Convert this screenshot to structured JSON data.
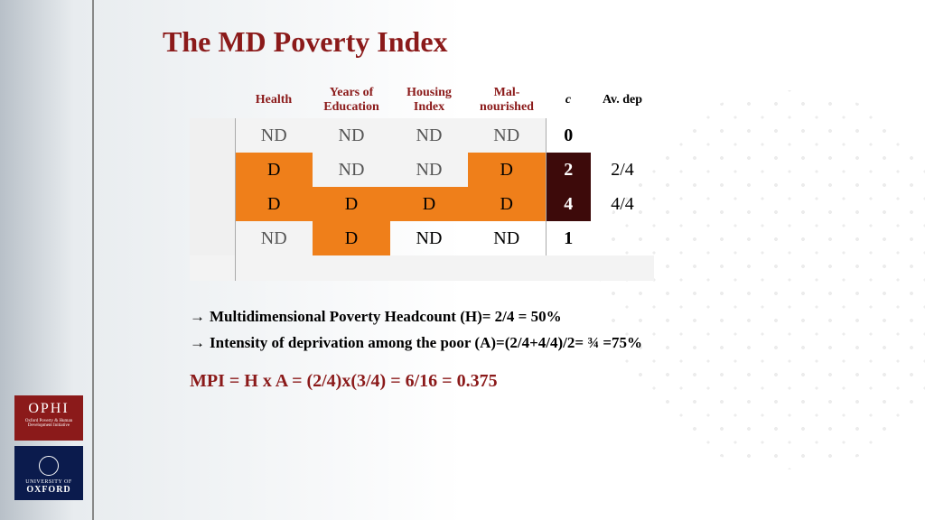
{
  "title": "The MD Poverty Index",
  "headers": {
    "health": "Health",
    "education": "Years of Education",
    "housing": "Housing Index",
    "malnourished": "Mal-nourished",
    "c": "c",
    "avdep": "Av. dep"
  },
  "rows": [
    {
      "cells": [
        "ND",
        "ND",
        "ND",
        "ND"
      ],
      "styles": [
        "nd",
        "nd",
        "nd",
        "nd"
      ],
      "c": "0",
      "c_style": "c-plain",
      "av": ""
    },
    {
      "cells": [
        "D",
        "ND",
        "ND",
        "D"
      ],
      "styles": [
        "d",
        "nd",
        "nd",
        "d"
      ],
      "c": "2",
      "c_style": "c-dark",
      "av": "2/4"
    },
    {
      "cells": [
        "D",
        "D",
        "D",
        "D"
      ],
      "styles": [
        "d",
        "d",
        "d",
        "d"
      ],
      "c": "4",
      "c_style": "c-dark",
      "av": "4/4"
    },
    {
      "cells": [
        "ND",
        "D",
        "ND",
        "ND"
      ],
      "styles": [
        "nd",
        "d",
        "plain",
        "plain"
      ],
      "c": "1",
      "c_style": "c-plain",
      "av": ""
    }
  ],
  "bullets": [
    "Multidimensional Poverty Headcount (H)=  2/4 = 50%",
    "Intensity of deprivation among the poor (A)=(2/4+4/4)/2= ¾ =75%"
  ],
  "mpi": "MPI = H x A = (2/4)x(3/4) = 6/16 = 0.375",
  "logos": {
    "ophi": "OPHI",
    "ophi_sub": "Oxford Poverty & Human Development Initiative",
    "ox_line1": "UNIVERSITY OF",
    "ox_line2": "OXFORD"
  },
  "colors": {
    "accent": "#8b1a1a",
    "orange": "#ef7f1a",
    "dark": "#3d0a0a"
  }
}
